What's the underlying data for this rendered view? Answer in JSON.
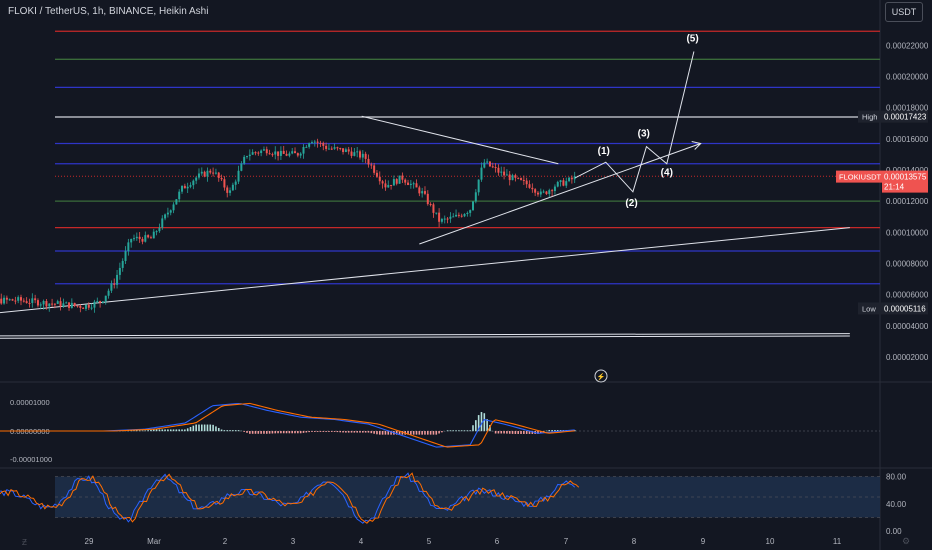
{
  "header": {
    "title": "FLOKI / TetherUS, 1h, BINANCE, Heikin Ashi",
    "currency": "USDT"
  },
  "colors": {
    "background": "#131722",
    "up": "#26a69a",
    "down": "#ef5350",
    "blue_line": "#2e35c7",
    "red_line": "#c62828",
    "green_line": "#3a6b3a",
    "white_line": "#d1d4dc",
    "macd": "#2962ff",
    "signal": "#ff6d00",
    "rsi_fill": "#1c2c45"
  },
  "price_scale": {
    "ticks": [
      "0.00022000",
      "0.00020000",
      "0.00018000",
      "0.00016000",
      "0.00014000",
      "0.00012000",
      "0.00010000",
      "0.00008000",
      "0.00006000",
      "0.00004000",
      "0.00002000"
    ],
    "high_label": "High",
    "high_value": "0.00017423",
    "low_label": "Low",
    "low_value": "0.00005116",
    "current_symbol": "FLOKIUSDT",
    "current_value": "0.00013575",
    "countdown": "21:14"
  },
  "macd_scale": {
    "ticks": [
      "0.00001000",
      "0.00000000",
      "-0.00001000"
    ]
  },
  "rsi_scale": {
    "ticks": [
      "80.00",
      "40.00",
      "0.00"
    ]
  },
  "time_axis": {
    "labels": [
      "29",
      "Mar",
      "2",
      "3",
      "4",
      "5",
      "6",
      "7",
      "8",
      "9",
      "10",
      "11"
    ]
  },
  "wave_labels": [
    "(1)",
    "(2)",
    "(3)",
    "(4)",
    "(5)"
  ],
  "chart_data": {
    "type": "candlestick",
    "title": "FLOKI / TetherUS, 1h, BINANCE, Heikin Ashi",
    "y_range": [
      5e-07,
      0.000235
    ],
    "x_range_days": [
      -1.5,
      11.6
    ],
    "horizontal_levels": [
      {
        "price": 0.000229,
        "color": "red"
      },
      {
        "price": 0.000211,
        "color": "green"
      },
      {
        "price": 0.000193,
        "color": "blue"
      },
      {
        "price": 0.000174,
        "color": "white"
      },
      {
        "price": 0.000157,
        "color": "blue"
      },
      {
        "price": 0.000144,
        "color": "blue"
      },
      {
        "price": 0.000136,
        "color": "red-dotted"
      },
      {
        "price": 0.00012,
        "color": "green"
      },
      {
        "price": 0.000103,
        "color": "red"
      },
      {
        "price": 8.8e-05,
        "color": "blue"
      },
      {
        "price": 6.7e-05,
        "color": "blue"
      }
    ],
    "price_path": [
      [
        -1.5,
        5.55e-05
      ],
      [
        -0.7,
        5.65e-05
      ],
      [
        -0.2,
        5.45e-05
      ],
      [
        0.3,
        5.25e-05
      ],
      [
        0.55,
        5.55e-05
      ],
      [
        0.75,
        6.8e-05
      ],
      [
        1.0,
        9.6e-05
      ],
      [
        1.3,
        9.6e-05
      ],
      [
        1.5,
        0.00011
      ],
      [
        1.75,
        0.000128
      ],
      [
        1.95,
        0.000135
      ],
      [
        2.2,
        0.00014
      ],
      [
        2.45,
        0.000125
      ],
      [
        2.7,
        0.00015
      ],
      [
        3.0,
        0.000153
      ],
      [
        3.2,
        0.00015
      ],
      [
        3.45,
        0.00015
      ],
      [
        3.65,
        0.00016
      ],
      [
        3.9,
        0.000154
      ],
      [
        4.2,
        0.000152
      ],
      [
        4.45,
        0.000148
      ],
      [
        4.75,
        0.00013
      ],
      [
        5.0,
        0.000135
      ],
      [
        5.3,
        0.000125
      ],
      [
        5.55,
        0.000107
      ],
      [
        5.8,
        0.00011
      ],
      [
        6.0,
        0.000115
      ],
      [
        6.2,
        0.000145
      ],
      [
        6.45,
        0.000138
      ],
      [
        6.7,
        0.000133
      ],
      [
        6.9,
        0.00013
      ],
      [
        7.05,
        0.000124
      ],
      [
        7.25,
        0.00013
      ],
      [
        7.45,
        0.000133
      ],
      [
        7.55,
        0.000135
      ]
    ],
    "trendlines": [
      {
        "from": [
          -1.5,
          4.6e-05
        ],
        "to": [
          11.6,
          0.000103
        ],
        "color": "white"
      },
      {
        "from": [
          4.4,
          0.0001745
        ],
        "to": [
          7.3,
          0.000144
        ],
        "color": "white"
      },
      {
        "from": [
          5.25,
          9.25e-05
        ],
        "to": [
          9.4,
          0.000157
        ],
        "color": "white"
      },
      {
        "from": [
          -1.5,
          3.35e-05
        ],
        "to": [
          11.6,
          3.5e-05
        ],
        "color": "white"
      },
      {
        "from": [
          -1.5,
          3.2e-05
        ],
        "to": [
          11.6,
          3.35e-05
        ],
        "color": "white"
      }
    ],
    "wave_projection": [
      [
        7.55,
        0.000135
      ],
      [
        8.0,
        0.000145
      ],
      [
        8.4,
        0.000126
      ],
      [
        8.6,
        0.000155
      ],
      [
        8.9,
        0.000144
      ],
      [
        9.3,
        0.000216
      ]
    ],
    "macd_range": [
      -1.9e-05,
      1.9e-05
    ],
    "rsi_range": [
      0,
      100
    ],
    "rsi_band": [
      20,
      80
    ]
  }
}
